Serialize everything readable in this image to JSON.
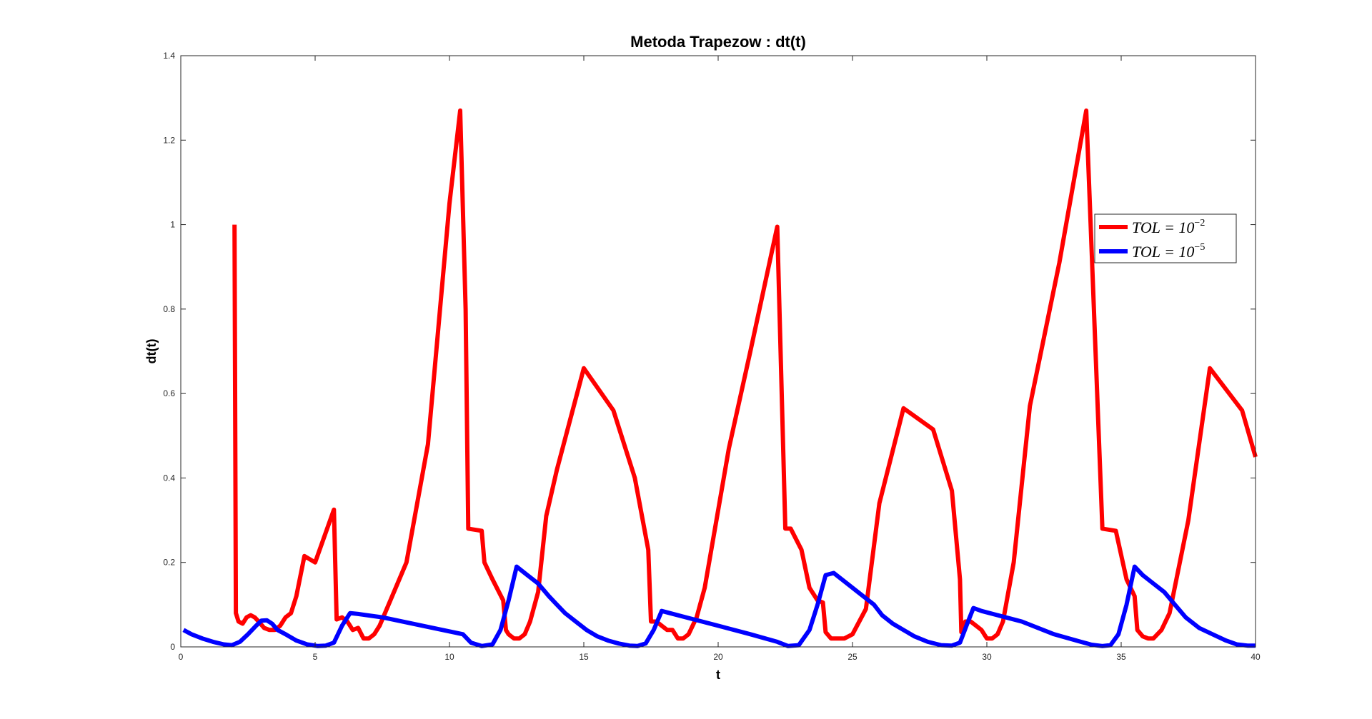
{
  "chart_data": {
    "type": "line",
    "title": "Metoda Trapezow : dt(t)",
    "xlabel": "t",
    "ylabel": "dt(t)",
    "xlim": [
      0,
      40
    ],
    "ylim": [
      0,
      1.4
    ],
    "xticks": [
      0,
      5,
      10,
      15,
      20,
      25,
      30,
      35,
      40
    ],
    "yticks": [
      0,
      0.2,
      0.4,
      0.6,
      0.8,
      1,
      1.2,
      1.4
    ],
    "xtick_labels": [
      "0",
      "5",
      "10",
      "15",
      "20",
      "25",
      "30",
      "35",
      "40"
    ],
    "ytick_labels": [
      "0",
      "0.2",
      "0.4",
      "0.6",
      "0.8",
      "1",
      "1.2",
      "1.4"
    ],
    "grid": false,
    "legend_position": "right",
    "series": [
      {
        "name": "TOL = 10^-2",
        "legend_base": "TOL = 10",
        "legend_exp": "−2",
        "color": "#ff0000",
        "x": [
          2.0,
          2.05,
          2.15,
          2.3,
          2.45,
          2.6,
          2.75,
          2.9,
          3.1,
          3.3,
          3.5,
          3.7,
          3.9,
          4.1,
          4.3,
          4.6,
          5.0,
          5.7,
          5.8,
          6.0,
          6.2,
          6.4,
          6.6,
          6.8,
          7.0,
          7.2,
          7.4,
          7.8,
          8.4,
          9.2,
          10.0,
          10.4,
          10.6,
          10.7,
          11.2,
          11.3,
          11.6,
          12.0,
          12.1,
          12.2,
          12.4,
          12.6,
          12.8,
          13.0,
          13.3,
          13.6,
          14.0,
          15.0,
          16.1,
          16.9,
          17.4,
          17.5,
          17.7,
          17.9,
          18.1,
          18.3,
          18.5,
          18.7,
          18.9,
          19.2,
          19.5,
          20.4,
          21.2,
          22.2,
          22.5,
          22.7,
          23.1,
          23.4,
          23.7,
          23.9,
          24.0,
          24.2,
          24.4,
          24.7,
          25.0,
          25.5,
          26.0,
          26.9,
          28.0,
          28.7,
          29.0,
          29.05,
          29.2,
          29.4,
          29.6,
          29.8,
          30.0,
          30.2,
          30.4,
          30.6,
          31.0,
          31.6,
          32.7,
          33.7,
          34.3,
          34.8,
          35.2,
          35.5,
          35.6,
          35.8,
          36.0,
          36.2,
          36.5,
          36.8,
          37.5,
          38.3,
          39.5,
          40.0
        ],
        "y": [
          1.0,
          0.08,
          0.06,
          0.055,
          0.07,
          0.075,
          0.07,
          0.06,
          0.045,
          0.04,
          0.04,
          0.05,
          0.07,
          0.08,
          0.12,
          0.215,
          0.2,
          0.325,
          0.065,
          0.07,
          0.06,
          0.04,
          0.045,
          0.02,
          0.02,
          0.03,
          0.05,
          0.11,
          0.2,
          0.48,
          1.05,
          1.27,
          0.8,
          0.28,
          0.275,
          0.2,
          0.16,
          0.11,
          0.04,
          0.03,
          0.02,
          0.02,
          0.03,
          0.06,
          0.13,
          0.31,
          0.42,
          0.66,
          0.56,
          0.4,
          0.23,
          0.06,
          0.06,
          0.05,
          0.04,
          0.04,
          0.02,
          0.02,
          0.03,
          0.07,
          0.14,
          0.47,
          0.7,
          0.995,
          0.28,
          0.28,
          0.23,
          0.14,
          0.11,
          0.105,
          0.035,
          0.02,
          0.02,
          0.02,
          0.03,
          0.09,
          0.34,
          0.565,
          0.515,
          0.37,
          0.16,
          0.035,
          0.06,
          0.06,
          0.05,
          0.04,
          0.02,
          0.02,
          0.03,
          0.06,
          0.2,
          0.57,
          0.91,
          1.27,
          0.28,
          0.275,
          0.16,
          0.12,
          0.04,
          0.025,
          0.02,
          0.02,
          0.04,
          0.08,
          0.3,
          0.66,
          0.56,
          0.45
        ]
      },
      {
        "name": "TOL = 10^-5",
        "legend_base": "TOL = 10",
        "legend_exp": "−5",
        "color": "#0000ff",
        "x": [
          0.1,
          0.4,
          0.8,
          1.2,
          1.6,
          1.9,
          2.2,
          2.5,
          2.8,
          3.0,
          3.2,
          3.4,
          3.6,
          3.9,
          4.3,
          4.7,
          5.1,
          5.4,
          5.7,
          6.0,
          6.3,
          6.6,
          7.5,
          9.0,
          10.5,
          10.8,
          11.2,
          11.6,
          11.9,
          12.2,
          12.5,
          12.9,
          13.3,
          13.7,
          14.0,
          14.3,
          14.7,
          15.1,
          15.5,
          15.9,
          16.3,
          16.7,
          17.0,
          17.3,
          17.6,
          17.9,
          18.2,
          18.8,
          20.0,
          21.2,
          22.2,
          22.6,
          23.0,
          23.4,
          23.7,
          24.0,
          24.3,
          24.6,
          25.2,
          25.8,
          26.1,
          26.5,
          26.9,
          27.3,
          27.8,
          28.3,
          28.7,
          29.0,
          29.3,
          29.5,
          29.8,
          30.4,
          31.3,
          32.5,
          33.5,
          33.9,
          34.3,
          34.6,
          34.9,
          35.2,
          35.5,
          35.8,
          36.2,
          36.6,
          37.0,
          37.4,
          37.9,
          38.4,
          38.9,
          39.3,
          39.7,
          40.0
        ],
        "y": [
          0.04,
          0.03,
          0.02,
          0.012,
          0.006,
          0.004,
          0.012,
          0.03,
          0.05,
          0.062,
          0.063,
          0.055,
          0.04,
          0.03,
          0.015,
          0.006,
          0.002,
          0.003,
          0.01,
          0.05,
          0.08,
          0.078,
          0.07,
          0.05,
          0.03,
          0.01,
          0.002,
          0.006,
          0.04,
          0.11,
          0.19,
          0.17,
          0.15,
          0.12,
          0.1,
          0.08,
          0.06,
          0.04,
          0.025,
          0.015,
          0.008,
          0.003,
          0.002,
          0.008,
          0.04,
          0.085,
          0.08,
          0.07,
          0.05,
          0.03,
          0.012,
          0.002,
          0.004,
          0.04,
          0.1,
          0.17,
          0.175,
          0.16,
          0.13,
          0.1,
          0.075,
          0.055,
          0.04,
          0.025,
          0.012,
          0.004,
          0.003,
          0.01,
          0.06,
          0.092,
          0.085,
          0.075,
          0.06,
          0.03,
          0.012,
          0.005,
          0.002,
          0.004,
          0.03,
          0.1,
          0.19,
          0.17,
          0.15,
          0.13,
          0.1,
          0.07,
          0.045,
          0.03,
          0.015,
          0.006,
          0.003,
          0.003
        ]
      }
    ]
  }
}
